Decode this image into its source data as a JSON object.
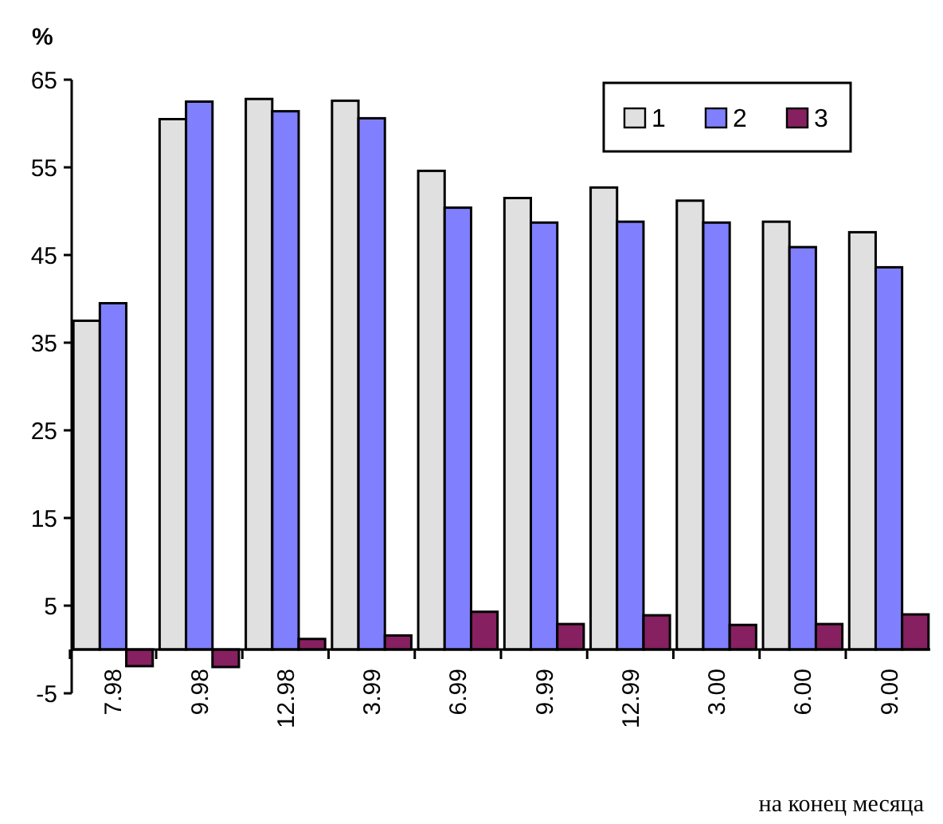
{
  "chart_data": {
    "type": "bar",
    "ylabel": "%",
    "xlabel": "на конец месяца",
    "categories": [
      "7.98",
      "9.98",
      "12.98",
      "3.99",
      "6.99",
      "9.99",
      "12.99",
      "3.00",
      "6.00",
      "9.00"
    ],
    "series": [
      {
        "name": "1",
        "color": "#e0e0e0",
        "values": [
          37.5,
          60.5,
          62.8,
          62.6,
          54.6,
          51.5,
          52.7,
          51.2,
          48.8,
          47.6
        ]
      },
      {
        "name": "2",
        "color": "#8080ff",
        "values": [
          39.5,
          62.5,
          61.4,
          60.6,
          50.4,
          48.7,
          48.8,
          48.7,
          45.9,
          43.6
        ]
      },
      {
        "name": "3",
        "color": "#862060",
        "values": [
          -1.9,
          -2,
          1.2,
          1.6,
          4.3,
          2.9,
          3.9,
          2.8,
          2.9,
          4.0
        ]
      }
    ],
    "ylim": [
      -5,
      65
    ],
    "yticks": [
      -5,
      5,
      15,
      25,
      35,
      45,
      55,
      65
    ],
    "grid": false,
    "legend": "top right"
  }
}
